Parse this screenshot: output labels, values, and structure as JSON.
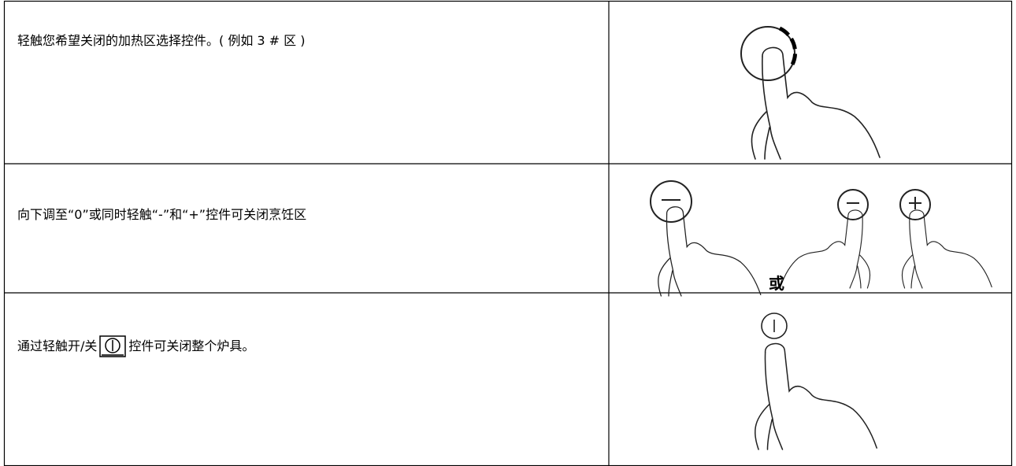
{
  "rows": [
    {
      "text": "轻触您希望关闭的加热区选择控件。( 例如  3 # 区 )"
    },
    {
      "text": "向下调至“0”或同时轻触“-”和“+”控件可关闭烹饪区",
      "image_label": "或"
    },
    {
      "text_before": "通过轻触开/关",
      "text_after": "控件可关闭整个炉具。"
    }
  ]
}
